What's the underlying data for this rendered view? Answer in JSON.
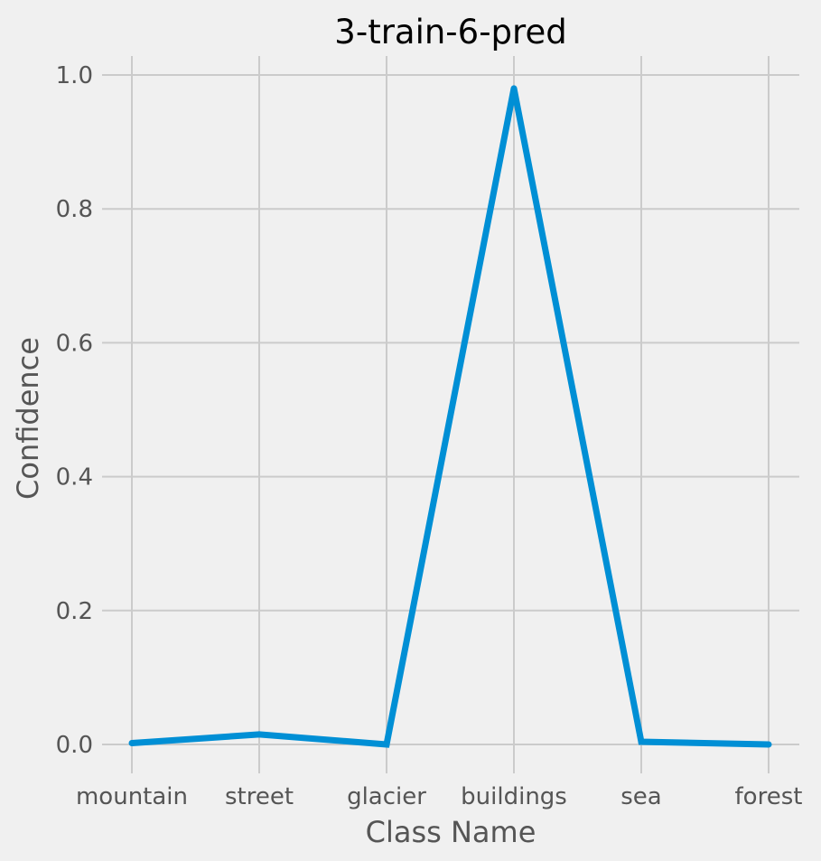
{
  "chart_data": {
    "type": "line",
    "title": "3-train-6-pred",
    "xlabel": "Class Name",
    "ylabel": "Confidence",
    "categories": [
      "mountain",
      "street",
      "glacier",
      "buildings",
      "sea",
      "forest"
    ],
    "series": [
      {
        "values": [
          0.002,
          0.015,
          0.0,
          0.98,
          0.004,
          0.0
        ]
      }
    ],
    "yticks": [
      "0.0",
      "0.2",
      "0.4",
      "0.6",
      "0.8",
      "1.0"
    ],
    "ylim": [
      0,
      1
    ],
    "grid": true,
    "colors": {
      "line": "#008fd5",
      "background": "#f0f0f0",
      "grid": "#cbcbcb"
    }
  }
}
